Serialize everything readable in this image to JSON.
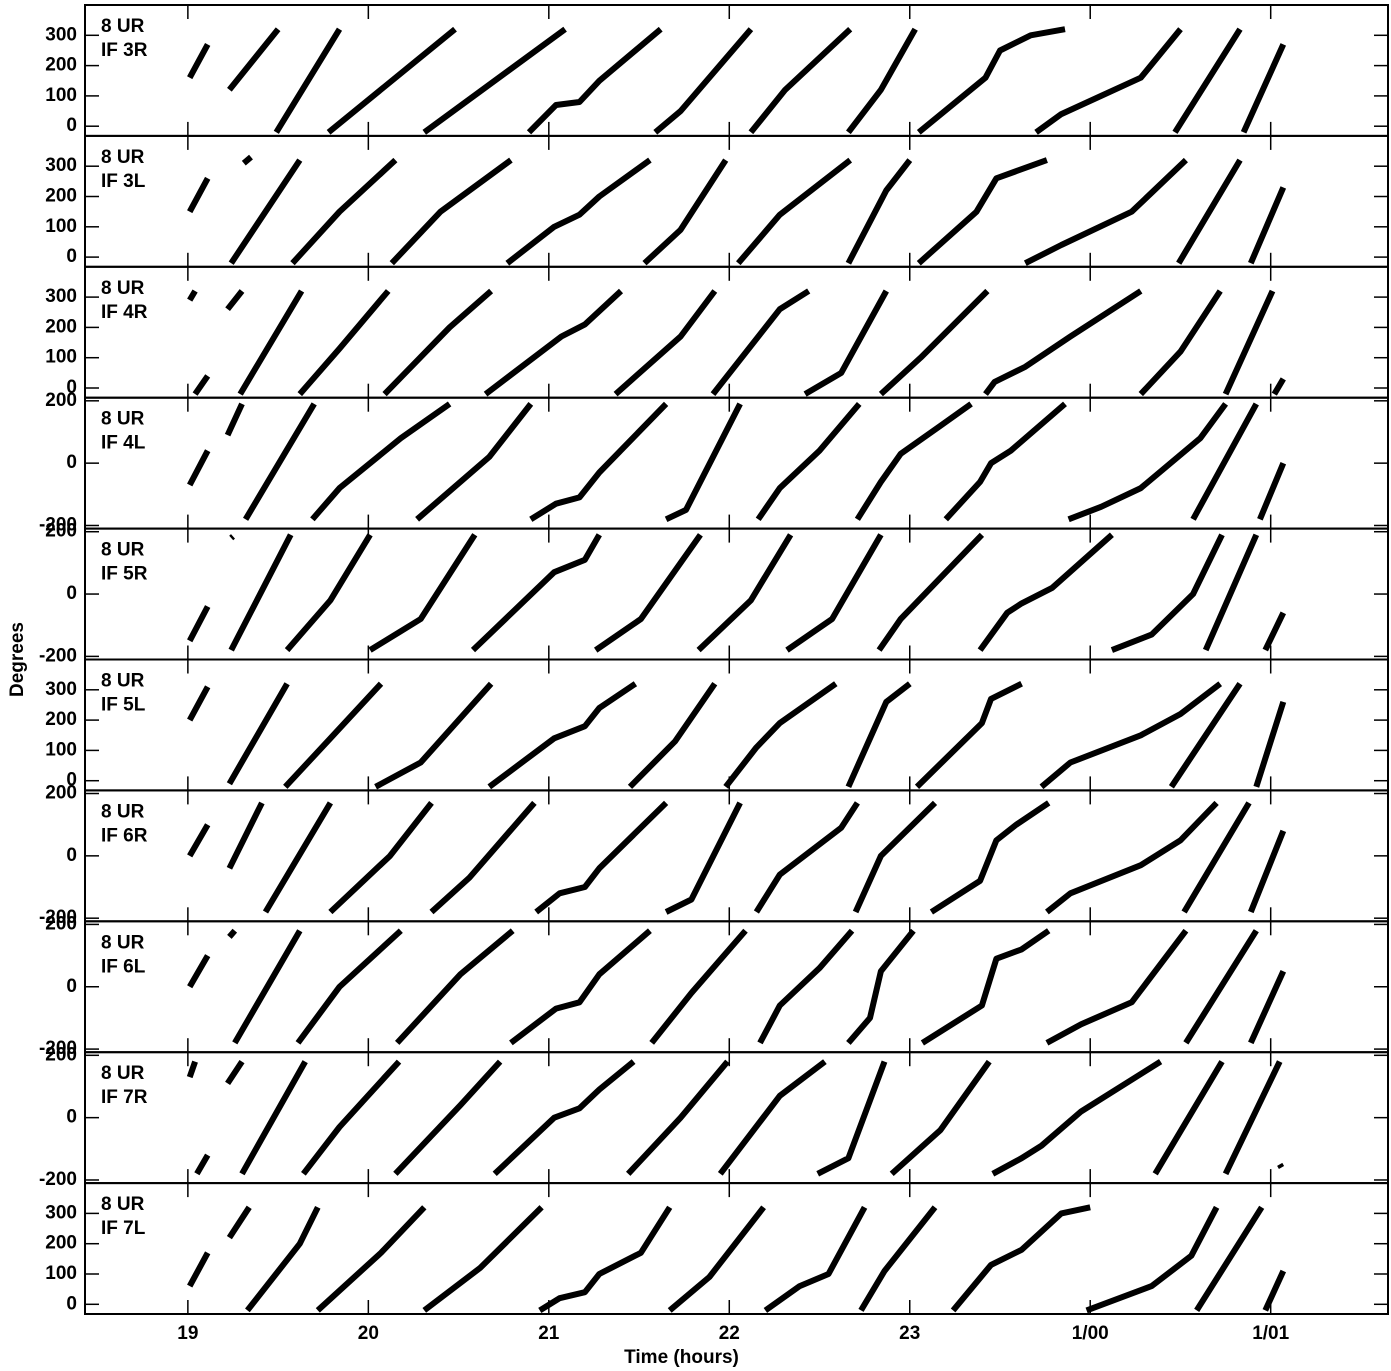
{
  "chart_data": [
    {
      "type": "line",
      "ylabel": "Degrees",
      "annotations": [
        "8 UR",
        "IF 3R"
      ],
      "color": "#000000",
      "ylim": [
        -32,
        400
      ],
      "yticks": [
        0,
        100,
        200,
        300
      ],
      "x": [
        19.01,
        19.11,
        null,
        19.23,
        19.5,
        null,
        19.49,
        19.84,
        null,
        19.78,
        20.48,
        null,
        20.31,
        21.09,
        null,
        20.89,
        21.04,
        21.17,
        21.28,
        21.62,
        null,
        21.59,
        21.73,
        22.12,
        null,
        22.12,
        22.31,
        22.67,
        null,
        22.66,
        22.84,
        23.03,
        null,
        23.05,
        23.42,
        23.5,
        23.67,
        23.86,
        null,
        23.7,
        23.84,
        24.06,
        24.28,
        24.5,
        null,
        24.47,
        24.83,
        null,
        24.85,
        25.07
      ],
      "values": [
        160,
        270,
        null,
        120,
        320,
        null,
        -20,
        320,
        null,
        -20,
        320,
        null,
        -20,
        320,
        null,
        -20,
        70,
        80,
        150,
        320,
        null,
        -20,
        50,
        320,
        null,
        -20,
        120,
        320,
        null,
        -20,
        120,
        320,
        null,
        -20,
        160,
        250,
        300,
        320,
        null,
        -20,
        40,
        100,
        160,
        320,
        null,
        -20,
        320,
        null,
        -20,
        270
      ]
    },
    {
      "type": "line",
      "annotations": [
        "8 UR",
        "IF 3L"
      ],
      "color": "#000000",
      "ylim": [
        -32,
        400
      ],
      "yticks": [
        0,
        100,
        200,
        300
      ],
      "x": [
        19.01,
        19.11,
        null,
        19.31,
        19.35,
        null,
        19.24,
        19.62,
        null,
        19.58,
        19.84,
        20.15,
        null,
        20.13,
        20.4,
        20.79,
        null,
        20.77,
        21.03,
        21.17,
        21.28,
        21.56,
        null,
        21.53,
        21.73,
        21.98,
        null,
        22.05,
        22.28,
        22.67,
        null,
        22.66,
        22.87,
        23.0,
        null,
        23.05,
        23.37,
        23.48,
        23.76,
        null,
        23.64,
        23.84,
        24.23,
        24.53,
        null,
        24.49,
        24.83,
        null,
        24.89,
        25.07
      ],
      "values": [
        150,
        260,
        null,
        310,
        330,
        null,
        -20,
        320,
        null,
        -20,
        150,
        320,
        null,
        -20,
        150,
        320,
        null,
        -20,
        100,
        140,
        200,
        320,
        null,
        -20,
        90,
        320,
        null,
        -20,
        140,
        320,
        null,
        -20,
        220,
        320,
        null,
        -20,
        150,
        260,
        320,
        null,
        -20,
        40,
        150,
        320,
        null,
        -20,
        320,
        null,
        -20,
        230
      ]
    },
    {
      "type": "line",
      "annotations": [
        "8 UR",
        "IF 4R"
      ],
      "color": "#000000",
      "ylim": [
        -32,
        400
      ],
      "yticks": [
        0,
        100,
        200,
        300
      ],
      "x": [
        19.01,
        19.04,
        null,
        19.04,
        19.11,
        null,
        19.22,
        19.3,
        null,
        19.29,
        19.63,
        null,
        19.62,
        19.84,
        20.11,
        null,
        20.09,
        20.45,
        20.68,
        null,
        20.65,
        21.07,
        21.2,
        21.4,
        null,
        21.37,
        21.73,
        21.92,
        null,
        21.91,
        22.28,
        22.44,
        null,
        22.42,
        22.62,
        22.87,
        null,
        22.84,
        23.06,
        23.43,
        null,
        23.42,
        23.47,
        23.64,
        23.89,
        24.28,
        null,
        24.28,
        24.5,
        24.72,
        null,
        24.75,
        25.01,
        null,
        25.02,
        25.07
      ],
      "values": [
        290,
        320,
        null,
        -20,
        40,
        null,
        260,
        320,
        null,
        -20,
        320,
        null,
        -20,
        130,
        320,
        null,
        -20,
        200,
        320,
        null,
        -20,
        170,
        210,
        320,
        null,
        -20,
        170,
        320,
        null,
        -20,
        260,
        320,
        null,
        -20,
        50,
        320,
        null,
        -20,
        100,
        320,
        null,
        -20,
        20,
        70,
        170,
        320,
        null,
        -20,
        120,
        320,
        null,
        -20,
        320,
        null,
        -20,
        30
      ]
    },
    {
      "type": "line",
      "annotations": [
        "8 UR",
        "IF 4L"
      ],
      "color": "#000000",
      "ylim": [
        -210,
        210
      ],
      "yticks": [
        -200,
        0,
        200
      ],
      "x": [
        19.01,
        19.11,
        null,
        19.22,
        19.3,
        null,
        19.32,
        19.7,
        null,
        19.69,
        19.84,
        20.18,
        20.45,
        null,
        20.27,
        20.67,
        20.9,
        null,
        20.9,
        21.04,
        21.17,
        21.28,
        21.65,
        null,
        21.65,
        21.76,
        22.06,
        null,
        22.16,
        22.28,
        22.5,
        22.72,
        null,
        22.71,
        22.84,
        22.95,
        23.17,
        23.34,
        null,
        23.2,
        23.39,
        23.45,
        23.56,
        23.86,
        null,
        23.88,
        24.06,
        24.28,
        24.61,
        24.75,
        null,
        24.57,
        24.92,
        null,
        24.94,
        25.07
      ],
      "values": [
        -70,
        40,
        null,
        90,
        190,
        null,
        -180,
        190,
        null,
        -180,
        -80,
        80,
        190,
        null,
        -180,
        20,
        190,
        null,
        -180,
        -130,
        -110,
        -30,
        190,
        null,
        -180,
        -150,
        190,
        null,
        -180,
        -80,
        40,
        190,
        null,
        -180,
        -60,
        30,
        120,
        190,
        null,
        -180,
        -60,
        0,
        40,
        190,
        null,
        -180,
        -140,
        -80,
        80,
        190,
        null,
        -180,
        190,
        null,
        -180,
        0
      ]
    },
    {
      "type": "line",
      "annotations": [
        "8 UR",
        "IF 5R"
      ],
      "color": "#000000",
      "ylim": [
        -210,
        210
      ],
      "yticks": [
        -200,
        0,
        200
      ],
      "x": [
        19.01,
        19.11,
        null,
        19.24,
        19.25,
        null,
        19.24,
        19.57,
        null,
        19.55,
        19.79,
        20.01,
        null,
        20.01,
        20.29,
        20.59,
        null,
        20.58,
        21.03,
        21.2,
        21.28,
        null,
        21.26,
        21.51,
        21.84,
        null,
        21.83,
        22.12,
        22.34,
        null,
        22.32,
        22.57,
        22.84,
        null,
        22.83,
        22.95,
        23.4,
        null,
        23.39,
        23.54,
        23.62,
        23.79,
        24.12,
        null,
        24.12,
        24.34,
        24.57,
        24.73,
        null,
        24.64,
        24.92,
        null,
        24.97,
        25.07
      ],
      "values": [
        -150,
        -40,
        null,
        180,
        185,
        null,
        -180,
        190,
        null,
        -180,
        -20,
        190,
        null,
        -180,
        -80,
        190,
        null,
        -180,
        70,
        110,
        190,
        null,
        -180,
        -80,
        190,
        null,
        -180,
        -20,
        190,
        null,
        -180,
        -80,
        190,
        null,
        -180,
        -80,
        190,
        null,
        -180,
        -60,
        -30,
        20,
        190,
        null,
        -180,
        -130,
        0,
        190,
        null,
        -180,
        190,
        null,
        -180,
        -60
      ]
    },
    {
      "type": "line",
      "annotations": [
        "8 UR",
        "IF 5L"
      ],
      "color": "#000000",
      "ylim": [
        -32,
        400
      ],
      "yticks": [
        0,
        100,
        200,
        300
      ],
      "x": [
        19.01,
        19.11,
        null,
        19.23,
        19.55,
        null,
        19.54,
        19.79,
        20.07,
        null,
        20.04,
        20.29,
        20.68,
        null,
        20.67,
        21.03,
        21.2,
        21.28,
        21.48,
        null,
        21.45,
        21.7,
        21.92,
        null,
        21.98,
        22.15,
        22.28,
        22.59,
        null,
        22.66,
        22.87,
        23.0,
        null,
        23.04,
        23.4,
        23.45,
        23.62,
        null,
        23.73,
        23.89,
        24.28,
        24.5,
        24.72,
        null,
        24.45,
        24.83,
        null,
        24.92,
        25.07
      ],
      "values": [
        200,
        310,
        null,
        -10,
        320,
        null,
        -20,
        140,
        320,
        null,
        -20,
        60,
        320,
        null,
        -20,
        140,
        180,
        240,
        320,
        null,
        -20,
        130,
        320,
        null,
        -20,
        110,
        190,
        320,
        null,
        -20,
        260,
        320,
        null,
        -20,
        190,
        270,
        320,
        null,
        -20,
        60,
        150,
        220,
        320,
        null,
        -20,
        320,
        null,
        -20,
        260
      ]
    },
    {
      "type": "line",
      "annotations": [
        "8 UR",
        "IF 6R"
      ],
      "color": "#000000",
      "ylim": [
        -210,
        210
      ],
      "yticks": [
        -200,
        0,
        200
      ],
      "x": [
        19.01,
        19.11,
        null,
        19.23,
        19.41,
        null,
        19.43,
        19.79,
        null,
        19.79,
        20.12,
        20.35,
        null,
        20.35,
        20.56,
        20.92,
        null,
        20.93,
        21.06,
        21.2,
        21.28,
        21.65,
        null,
        21.65,
        21.79,
        22.06,
        null,
        22.15,
        22.28,
        22.62,
        22.71,
        null,
        22.7,
        22.84,
        23.14,
        null,
        23.12,
        23.39,
        23.48,
        23.59,
        23.77,
        null,
        23.76,
        23.89,
        24.28,
        24.5,
        24.7,
        null,
        24.52,
        24.88,
        null,
        24.89,
        25.07
      ],
      "values": [
        0,
        100,
        null,
        -40,
        170,
        null,
        -180,
        170,
        null,
        -180,
        0,
        170,
        null,
        -180,
        -70,
        170,
        null,
        -180,
        -120,
        -100,
        -40,
        170,
        null,
        -180,
        -140,
        170,
        null,
        -180,
        -60,
        90,
        170,
        null,
        -180,
        0,
        170,
        null,
        -180,
        -80,
        50,
        100,
        170,
        null,
        -180,
        -120,
        -30,
        50,
        170,
        null,
        -180,
        170,
        null,
        -180,
        80
      ]
    },
    {
      "type": "line",
      "annotations": [
        "8 UR",
        "IF 6L"
      ],
      "color": "#000000",
      "ylim": [
        -210,
        210
      ],
      "yticks": [
        -200,
        0,
        200
      ],
      "x": [
        19.01,
        19.11,
        null,
        19.23,
        19.26,
        null,
        19.26,
        19.62,
        null,
        19.61,
        19.84,
        20.18,
        null,
        20.16,
        20.51,
        20.8,
        null,
        20.79,
        21.04,
        21.17,
        21.28,
        21.56,
        null,
        21.57,
        21.79,
        22.09,
        null,
        22.17,
        22.28,
        22.5,
        22.68,
        null,
        22.66,
        22.78,
        22.84,
        23.02,
        null,
        23.07,
        23.4,
        23.48,
        23.62,
        23.77,
        null,
        23.76,
        23.95,
        24.23,
        24.53,
        null,
        24.53,
        24.92,
        null,
        24.89,
        25.07
      ],
      "values": [
        0,
        100,
        null,
        160,
        180,
        null,
        -180,
        180,
        null,
        -180,
        0,
        180,
        null,
        -180,
        40,
        180,
        null,
        -180,
        -70,
        -50,
        40,
        180,
        null,
        -180,
        -20,
        180,
        null,
        -180,
        -60,
        60,
        180,
        null,
        -180,
        -100,
        50,
        180,
        null,
        -180,
        -60,
        90,
        120,
        180,
        null,
        -180,
        -120,
        -50,
        180,
        null,
        -180,
        180,
        null,
        -180,
        50
      ]
    },
    {
      "type": "line",
      "annotations": [
        "8 UR",
        "IF 7R"
      ],
      "color": "#000000",
      "ylim": [
        -210,
        210
      ],
      "yticks": [
        -200,
        0,
        200
      ],
      "x": [
        19.01,
        19.04,
        null,
        19.05,
        19.11,
        null,
        19.22,
        19.3,
        null,
        19.3,
        19.65,
        null,
        19.64,
        19.84,
        20.17,
        null,
        20.15,
        20.51,
        20.73,
        null,
        20.7,
        21.03,
        21.17,
        21.28,
        21.47,
        null,
        21.44,
        21.73,
        21.99,
        null,
        21.95,
        22.28,
        22.53,
        null,
        22.49,
        22.66,
        22.86,
        null,
        22.9,
        23.17,
        23.44,
        null,
        23.46,
        23.62,
        23.73,
        23.95,
        24.39,
        null,
        24.36,
        24.73,
        null,
        24.75,
        25.05,
        null,
        25.05,
        25.06
      ],
      "values": [
        130,
        180,
        null,
        -180,
        -120,
        null,
        110,
        180,
        null,
        -180,
        180,
        null,
        -180,
        -30,
        180,
        null,
        -180,
        40,
        180,
        null,
        -180,
        0,
        30,
        90,
        180,
        null,
        -180,
        0,
        180,
        null,
        -180,
        70,
        180,
        null,
        -180,
        -130,
        180,
        null,
        -180,
        -40,
        180,
        null,
        -180,
        -130,
        -90,
        20,
        180,
        null,
        -180,
        180,
        null,
        -180,
        180,
        null,
        -150,
        -160
      ]
    },
    {
      "type": "line",
      "xlabel": "Time (hours)",
      "annotations": [
        "8 UR",
        "IF 7L"
      ],
      "color": "#000000",
      "ylim": [
        -32,
        400
      ],
      "yticks": [
        0,
        100,
        200,
        300
      ],
      "xlim": [
        18.43,
        25.65
      ],
      "xticks": [
        19,
        20,
        21,
        22,
        23,
        {
          "value": 24,
          "label": "1/00"
        },
        {
          "value": 25,
          "label": "1/01"
        }
      ],
      "x": [
        19.01,
        19.11,
        null,
        19.23,
        19.34,
        null,
        19.33,
        19.62,
        19.72,
        null,
        19.72,
        20.07,
        20.31,
        null,
        20.31,
        20.62,
        20.96,
        null,
        20.95,
        21.06,
        21.2,
        21.28,
        21.51,
        21.67,
        null,
        21.67,
        21.89,
        22.19,
        null,
        22.2,
        22.39,
        22.55,
        22.75,
        null,
        22.73,
        22.86,
        23.14,
        null,
        23.24,
        23.45,
        23.62,
        23.84,
        24.0,
        null,
        23.98,
        24.34,
        24.56,
        24.7,
        null,
        24.59,
        24.95,
        null,
        24.97,
        25.07
      ],
      "values": [
        60,
        170,
        null,
        220,
        320,
        null,
        -20,
        200,
        320,
        null,
        -20,
        170,
        320,
        null,
        -20,
        120,
        320,
        null,
        -20,
        20,
        40,
        100,
        170,
        320,
        null,
        -20,
        90,
        320,
        null,
        -20,
        60,
        100,
        320,
        null,
        -20,
        110,
        320,
        null,
        -20,
        130,
        180,
        300,
        320,
        null,
        -20,
        60,
        160,
        320,
        null,
        -20,
        320,
        null,
        -20,
        110
      ]
    }
  ]
}
